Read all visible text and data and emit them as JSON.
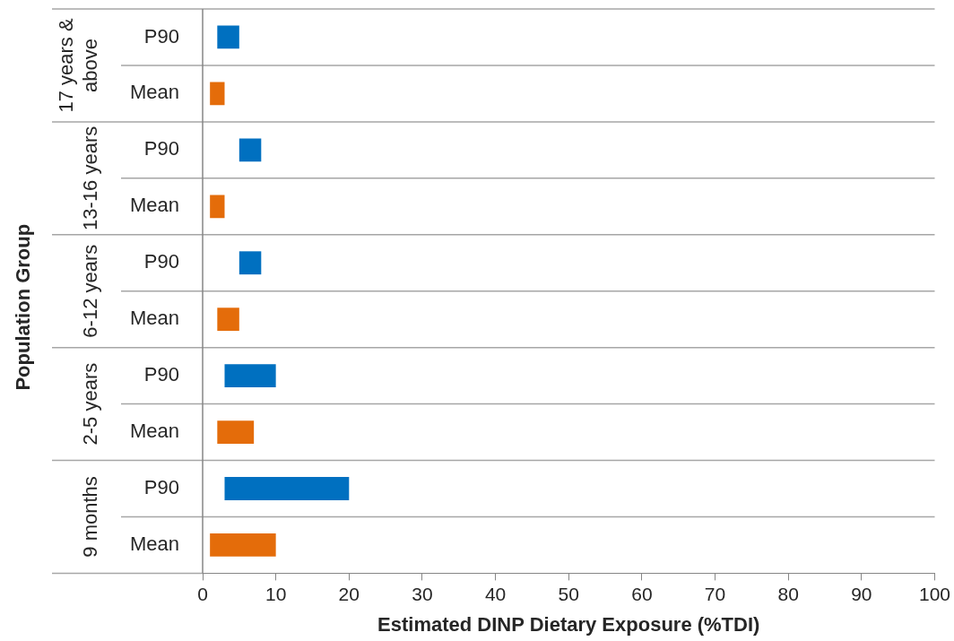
{
  "chart_data": {
    "type": "bar",
    "orientation": "horizontal",
    "xlabel": "Estimated DINP Dietary Exposure (%TDI)",
    "ylabel": "Population Group",
    "categories": [
      "17 years & above",
      "13-16 years",
      "6-12 years",
      "2-5 years",
      "9 months"
    ],
    "series": [
      {
        "name": "P90",
        "color": "#0070c0",
        "values": [
          3,
          3,
          3,
          7,
          17
        ],
        "base": [
          2,
          5,
          5,
          3,
          3
        ]
      },
      {
        "name": "Mean",
        "color": "#e46c0a",
        "values": [
          2,
          2,
          3,
          5,
          9
        ],
        "base": [
          1,
          1,
          2,
          2,
          1
        ]
      }
    ],
    "xlim": [
      0,
      100
    ],
    "xticks": [
      0,
      10,
      20,
      30,
      40,
      50,
      60,
      70,
      80,
      90,
      100
    ],
    "grid": "y"
  }
}
